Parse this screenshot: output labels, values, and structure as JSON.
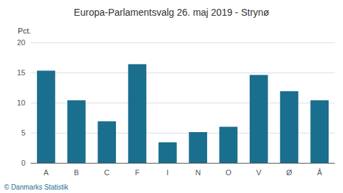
{
  "chart_data": {
    "type": "bar",
    "title": "Europa-Parlamentsvalg 26. maj 2019 - Strynø",
    "categories": [
      "A",
      "B",
      "C",
      "F",
      "I",
      "N",
      "O",
      "V",
      "Ø",
      "Å"
    ],
    "values": [
      15.3,
      10.4,
      6.9,
      16.4,
      3.4,
      5.1,
      6.0,
      14.6,
      11.9,
      10.4
    ],
    "color": "#1a6e8e",
    "ylabel": "Pct.",
    "footer": "© Danmarks Statistik",
    "ylim": [
      0,
      20
    ],
    "yticks": [
      0,
      5,
      10,
      15,
      20
    ],
    "grid": true
  }
}
